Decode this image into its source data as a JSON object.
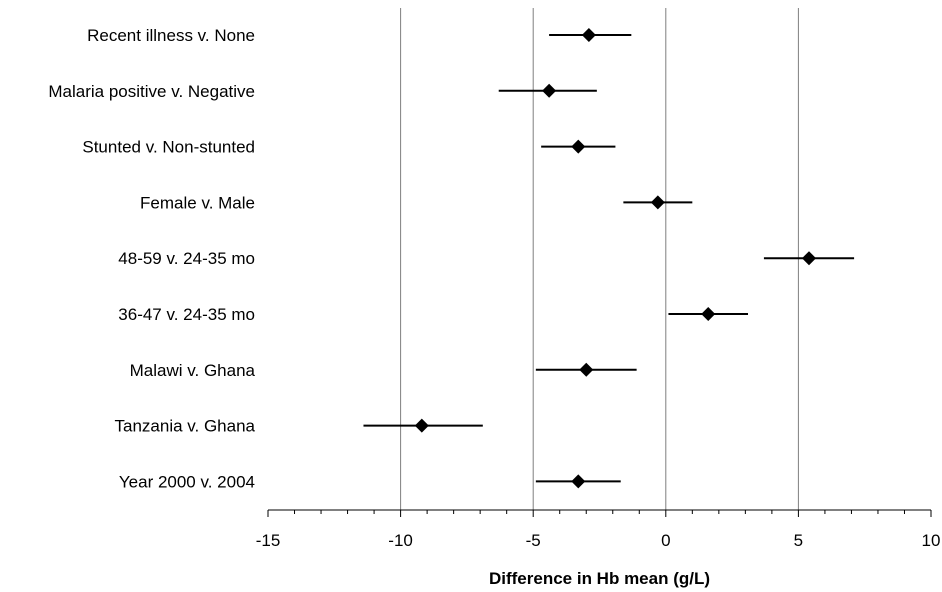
{
  "chart_data": {
    "type": "scatter",
    "orientation": "horizontal-forest-plot",
    "title": "",
    "xlabel": "Difference in Hb mean (g/L)",
    "ylabel": "",
    "xlim": [
      -15,
      10
    ],
    "x_ticks": [
      -15,
      -10,
      -5,
      0,
      5,
      10
    ],
    "grid": "vertical major gridlines",
    "legend": "none",
    "marker": "diamond",
    "color": "#000000",
    "categories": [
      "Recent illness v. None",
      "Malaria positive v. Negative",
      "Stunted v. Non-stunted",
      "Female v. Male",
      "48-59 v. 24-35 mo",
      "36-47 v. 24-35 mo",
      "Malawi v. Ghana",
      "Tanzania v. Ghana",
      "Year 2000 v. 2004"
    ],
    "estimate": [
      -2.9,
      -4.4,
      -3.3,
      -0.3,
      5.4,
      1.6,
      -3.0,
      -9.2,
      -3.3
    ],
    "ci_low": [
      -4.4,
      -6.3,
      -4.7,
      -1.6,
      3.7,
      0.1,
      -4.9,
      -11.4,
      -4.9
    ],
    "ci_high": [
      -1.3,
      -2.6,
      -1.9,
      1.0,
      7.1,
      3.1,
      -1.1,
      -6.9,
      -1.7
    ]
  }
}
